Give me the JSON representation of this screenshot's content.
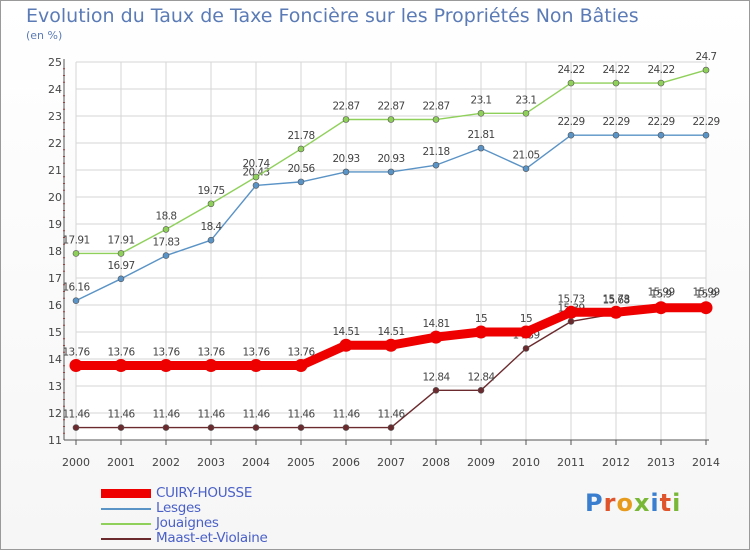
{
  "chart_data": {
    "type": "line",
    "title": "Evolution du Taux de Taxe Foncière sur les Propriétés Non Bâties",
    "unit": "(en %)",
    "x": [
      "2000",
      "2001",
      "2002",
      "2003",
      "2004",
      "2005",
      "2006",
      "2007",
      "2008",
      "2009",
      "2010",
      "2011",
      "2012",
      "2013",
      "2014"
    ],
    "ylim": [
      11,
      25
    ],
    "yticks": [
      "11",
      "12",
      "13",
      "14",
      "15",
      "16",
      "17",
      "18",
      "19",
      "20",
      "21",
      "22",
      "23",
      "24",
      "25"
    ],
    "grid": true,
    "series": [
      {
        "name": "Maast-et-Violaine",
        "color": "#6b2b2e",
        "values": [
          11.46,
          11.46,
          11.46,
          11.46,
          11.46,
          11.46,
          11.46,
          11.46,
          12.84,
          12.84,
          14.39,
          15.39,
          15.68,
          15.99,
          15.99
        ],
        "labels": [
          "11.46",
          "11.46",
          "11.46",
          "11.46",
          "11.46",
          "11.46",
          "11.46",
          "11.46",
          "12.84",
          "12.84",
          "14.39",
          "15.39",
          "15.68",
          "15.99",
          "15.99"
        ]
      },
      {
        "name": "Lesges",
        "color": "#5a93c6",
        "values": [
          16.16,
          16.97,
          17.83,
          18.4,
          20.43,
          20.56,
          20.93,
          20.93,
          21.18,
          21.81,
          21.05,
          22.29,
          22.29,
          22.29,
          22.29
        ],
        "labels": [
          "16.16",
          "16.97",
          "17.83",
          "18.4",
          "20.43",
          "20.56",
          "20.93",
          "20.93",
          "21.18",
          "21.81",
          "21.05",
          "22.29",
          "22.29",
          "22.29",
          "22.29"
        ]
      },
      {
        "name": "Jouaignes",
        "color": "#8fd05a",
        "values": [
          17.91,
          17.91,
          18.8,
          19.75,
          20.74,
          21.78,
          22.87,
          22.87,
          22.87,
          23.1,
          23.1,
          24.22,
          24.22,
          24.22,
          24.7
        ],
        "labels": [
          "17.91",
          "17.91",
          "18.8",
          "19.75",
          "20.74",
          "21.78",
          "22.87",
          "22.87",
          "22.87",
          "23.1",
          "23.1",
          "24.22",
          "24.22",
          "24.22",
          "24.7"
        ]
      },
      {
        "name": "CUIRY-HOUSSE",
        "color": "#ee0000",
        "values": [
          13.76,
          13.76,
          13.76,
          13.76,
          13.76,
          13.76,
          14.51,
          14.51,
          14.81,
          15,
          15,
          15.73,
          15.73,
          15.9,
          15.9
        ],
        "labels": [
          "13.76",
          "13.76",
          "13.76",
          "13.76",
          "13.76",
          "13.76",
          "14.51",
          "14.51",
          "14.81",
          "15",
          "15",
          "15.73",
          "15.73",
          "15.9",
          "15.9"
        ]
      }
    ],
    "legend": [
      "CUIRY-HOUSSE",
      "Lesges",
      "Jouaignes",
      "Maast-et-Violaine"
    ]
  },
  "logo": [
    "P",
    "r",
    "o",
    "x",
    "i",
    "t",
    "i"
  ],
  "colors": {
    "grid": "#d6d6d6",
    "axis": "#555555",
    "label": "#444444",
    "title": "#5b7bb6",
    "legend_text": "#4a60c8"
  }
}
